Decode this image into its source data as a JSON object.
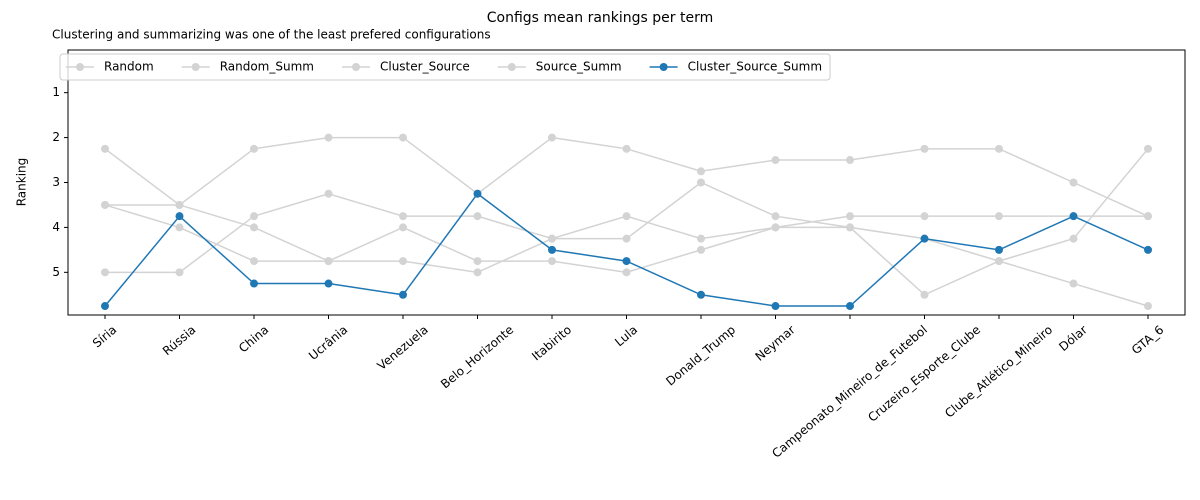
{
  "chart_data": {
    "type": "line",
    "title": "Configs mean rankings per term",
    "subtitle": "Clustering and summarizing was one of the least prefered configurations",
    "y_label": "Ranking",
    "categories": [
      "Síria",
      "Rússia",
      "China",
      "Ucrânia",
      "Venezuela",
      "Belo_Horizonte",
      "Itabirito",
      "Lula",
      "Donald_Trump",
      "Neymar",
      "Campeonato_Mineiro_de_Futebol",
      "Cruzeiro_Esporte_Clube",
      "Clube_Atlético_Mineiro",
      "Dólar",
      "GTA_6"
    ],
    "series": [
      {
        "name": "Random",
        "color": "#d3d3d3",
        "values": [
          2.25,
          3.5,
          2.25,
          2.0,
          2.0,
          3.25,
          2.0,
          2.25,
          2.75,
          2.5,
          2.5,
          2.25,
          2.25,
          3.0,
          3.75
        ]
      },
      {
        "name": "Random_Summ",
        "color": "#d3d3d3",
        "values": [
          3.5,
          3.5,
          4.0,
          4.75,
          4.75,
          5.0,
          4.25,
          4.25,
          3.0,
          3.75,
          4.0,
          4.25,
          4.75,
          5.25,
          5.75
        ]
      },
      {
        "name": "Cluster_Source",
        "color": "#d3d3d3",
        "values": [
          3.5,
          4.0,
          4.75,
          4.75,
          4.0,
          4.75,
          4.75,
          5.0,
          4.5,
          4.0,
          3.75,
          3.75,
          3.75,
          3.75,
          3.75
        ]
      },
      {
        "name": "Source_Summ",
        "color": "#d3d3d3",
        "values": [
          5.0,
          5.0,
          3.75,
          3.25,
          3.75,
          3.75,
          4.25,
          3.75,
          4.25,
          4.0,
          4.0,
          5.5,
          4.75,
          4.25,
          2.25
        ]
      },
      {
        "name": "Cluster_Source_Summ",
        "color": "#1f77b4",
        "values": [
          5.75,
          3.75,
          5.25,
          5.25,
          5.5,
          3.25,
          4.5,
          4.75,
          5.5,
          5.75,
          5.75,
          4.25,
          4.5,
          3.75,
          4.5
        ]
      }
    ],
    "ylim": [
      5.95,
      0.05
    ],
    "yticks": [
      1,
      2,
      3,
      4,
      5
    ],
    "inverted_y": true,
    "legend": "upper left",
    "grid": false
  }
}
